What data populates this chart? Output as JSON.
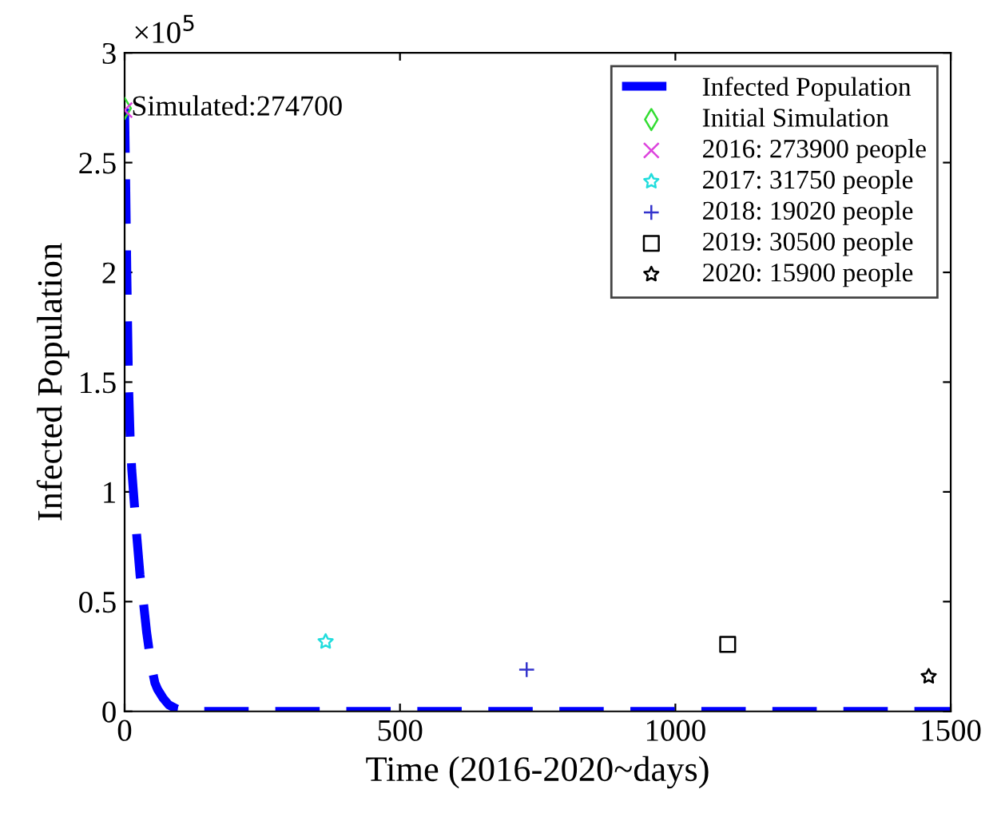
{
  "chart_data": {
    "type": "scatter",
    "xlabel": "Time (2016-2020~days)",
    "ylabel": "Infected Population",
    "xlim": [
      0,
      1500
    ],
    "xticks": [
      0,
      500,
      1000,
      1500
    ],
    "ylim": [
      0,
      3
    ],
    "yticks": [
      0,
      0.5,
      1,
      1.5,
      2,
      2.5,
      3
    ],
    "grid": false,
    "legend": "top right",
    "annotations": [
      {
        "text": "Simulated:274700",
        "x": 0,
        "y": 2.747
      },
      "×10$^{5}$"
    ],
    "series": [
      {
        "name": "Infected Population",
        "type": "line",
        "color": "#0000ff",
        "line_style": "dashed",
        "marker": "none",
        "x": [
          0,
          2,
          4,
          7,
          10,
          13,
          16,
          22,
          28,
          34,
          40,
          45,
          50,
          55,
          60,
          65,
          70,
          80,
          95,
          120,
          1500
        ],
        "values": [
          2.747,
          2.4,
          2.0,
          1.5,
          1.25,
          1.1,
          1.0,
          0.8,
          0.62,
          0.5,
          0.36,
          0.27,
          0.19,
          0.13,
          0.1,
          0.08,
          0.06,
          0.03,
          0.01,
          0,
          0
        ]
      },
      {
        "name": "Initial Simulation",
        "color": "#33dd33",
        "marker": "diamond",
        "x": [
          0
        ],
        "values": [
          2.747
        ]
      },
      {
        "name": "2016: 273900 people",
        "color": "#dd44dd",
        "marker": "cross",
        "x": [
          0
        ],
        "values": [
          2.739
        ]
      },
      {
        "name": "2017: 31750 people",
        "color": "#22dddd",
        "marker": "star",
        "x": [
          365
        ],
        "values": [
          0.3175
        ]
      },
      {
        "name": "2018: 19020 people",
        "color": "#3333cc",
        "marker": "plus",
        "x": [
          730
        ],
        "values": [
          0.1902
        ]
      },
      {
        "name": "2019: 30500 people",
        "color": "#000000",
        "marker": "square",
        "x": [
          1095
        ],
        "values": [
          0.305
        ]
      },
      {
        "name": "2020: 15900 people",
        "color": "#000000",
        "marker": "star",
        "x": [
          1460
        ],
        "values": [
          0.159
        ]
      }
    ]
  }
}
